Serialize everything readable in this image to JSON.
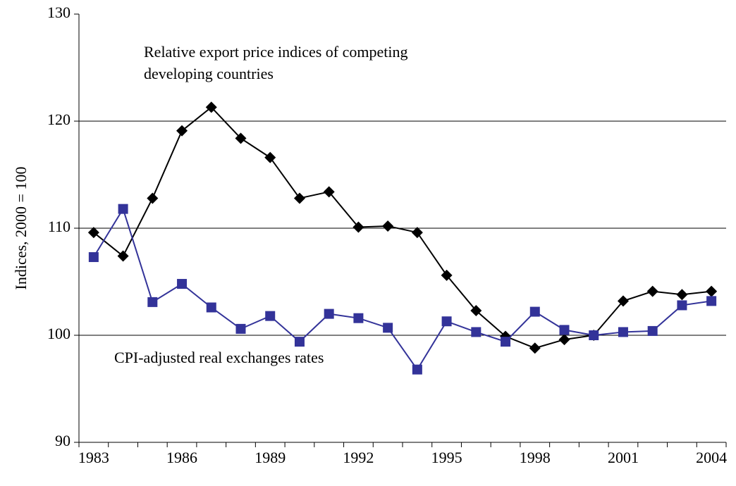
{
  "chart_data": {
    "type": "line",
    "y_label": "Indices, 2000 = 100",
    "categories": [
      "1983",
      null,
      null,
      "1986",
      null,
      null,
      "1989",
      null,
      null,
      "1992",
      null,
      null,
      "1995",
      null,
      null,
      "1998",
      null,
      null,
      "2001",
      null,
      null,
      "2004"
    ],
    "series": [
      {
        "name": "Relative export price indices of competing developing countries",
        "color": "#000000",
        "marker": "diamond",
        "values": [
          109.6,
          107.4,
          112.8,
          119.1,
          121.3,
          118.4,
          116.6,
          112.8,
          113.4,
          110.1,
          110.2,
          109.6,
          105.6,
          102.3,
          99.9,
          98.8,
          99.6,
          100,
          103.2,
          104.1,
          103.8,
          104.1
        ]
      },
      {
        "name": "CPI-adjusted real exchanges rates",
        "color": "#333399",
        "marker": "square",
        "values": [
          107.3,
          111.8,
          103.1,
          104.8,
          102.6,
          100.6,
          101.8,
          99.4,
          102,
          101.6,
          100.7,
          96.8,
          101.3,
          100.3,
          99.4,
          102.2,
          100.5,
          100,
          100.3,
          100.4,
          102.8,
          103.2
        ]
      }
    ],
    "ylim": [
      90,
      130
    ],
    "yticks": [
      90,
      100,
      110,
      120,
      130
    ],
    "grid": true
  }
}
